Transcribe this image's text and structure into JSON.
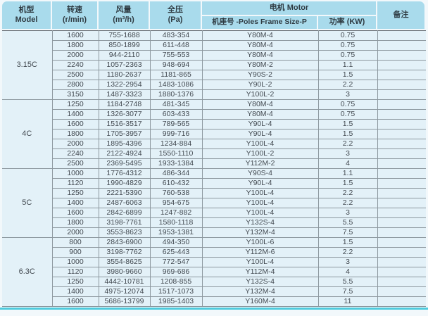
{
  "header": {
    "model": {
      "line1": "机型",
      "line2": "Model"
    },
    "speed": {
      "line1": "转速",
      "line2": "(r/min)"
    },
    "airflow": {
      "line1": "风量",
      "line2": "(m³/h)"
    },
    "pressure": {
      "line1": "全压",
      "line2": "(Pa)"
    },
    "motor_group": "电机 Motor",
    "frame": "机座号 -Poles Frame Size-P",
    "power": "功率 (KW)",
    "remark": "备注"
  },
  "colors": {
    "header_bg": "#a9dbec",
    "cell_bg": "#e3f1f8",
    "cell_border": "#8d989f",
    "group_divider": "#676e74",
    "bottom_accent": "#4ecbdd",
    "page_bg": "#f2f8fb"
  },
  "groups": [
    {
      "model": "3.15C",
      "rows": [
        [
          "1600",
          "755-1688",
          "483-354",
          "Y80M-4",
          "0.75",
          ""
        ],
        [
          "1800",
          "850-1899",
          "611-448",
          "Y80M-4",
          "0.75",
          ""
        ],
        [
          "2000",
          "944-2110",
          "755-553",
          "Y80M-4",
          "0.75",
          ""
        ],
        [
          "2240",
          "1057-2363",
          "948-694",
          "Y80M-2",
          "1.1",
          ""
        ],
        [
          "2500",
          "1180-2637",
          "1181-865",
          "Y90S-2",
          "1.5",
          ""
        ],
        [
          "2800",
          "1322-2954",
          "1483-1086",
          "Y90L-2",
          "2.2",
          ""
        ],
        [
          "3150",
          "1487-3323",
          "1880-1376",
          "Y100L-2",
          "3",
          ""
        ]
      ]
    },
    {
      "model": "4C",
      "rows": [
        [
          "1250",
          "1184-2748",
          "481-345",
          "Y80M-4",
          "0.75",
          ""
        ],
        [
          "1400",
          "1326-3077",
          "603-433",
          "Y80M-4",
          "0.75",
          ""
        ],
        [
          "1600",
          "1516-3517",
          "789-565",
          "Y90L-4",
          "1.5",
          ""
        ],
        [
          "1800",
          "1705-3957",
          "999-716",
          "Y90L-4",
          "1.5",
          ""
        ],
        [
          "2000",
          "1895-4396",
          "1234-884",
          "Y100L-4",
          "2.2",
          ""
        ],
        [
          "2240",
          "2122-4924",
          "1550-1110",
          "Y100L-2",
          "3",
          ""
        ],
        [
          "2500",
          "2369-5495",
          "1933-1384",
          "Y112M-2",
          "4",
          ""
        ]
      ]
    },
    {
      "model": "5C",
      "rows": [
        [
          "1000",
          "1776-4312",
          "486-344",
          "Y90S-4",
          "1.1",
          ""
        ],
        [
          "1120",
          "1990-4829",
          "610-432",
          "Y90L-4",
          "1.5",
          ""
        ],
        [
          "1250",
          "2221-5390",
          "760-538",
          "Y100L-4",
          "2.2",
          ""
        ],
        [
          "1400",
          "2487-6063",
          "954-675",
          "Y100L-4",
          "2.2",
          ""
        ],
        [
          "1600",
          "2842-6899",
          "1247-882",
          "Y100L-4",
          "3",
          ""
        ],
        [
          "1800",
          "3198-7761",
          "1580-1118",
          "Y132S-4",
          "5.5",
          ""
        ],
        [
          "2000",
          "3553-8623",
          "1953-1381",
          "Y132M-4",
          "7.5",
          ""
        ]
      ]
    },
    {
      "model": "6.3C",
      "rows": [
        [
          "800",
          "2843-6900",
          "494-350",
          "Y100L-6",
          "1.5",
          ""
        ],
        [
          "900",
          "3198-7762",
          "625-443",
          "Y112M-6",
          "2.2",
          ""
        ],
        [
          "1000",
          "3554-8625",
          "772-547",
          "Y100L-4",
          "3",
          ""
        ],
        [
          "1120",
          "3980-9660",
          "969-686",
          "Y112M-4",
          "4",
          ""
        ],
        [
          "1250",
          "4442-10781",
          "1208-855",
          "Y132S-4",
          "5.5",
          ""
        ],
        [
          "1400",
          "4975-12074",
          "1517-1073",
          "Y132M-4",
          "7.5",
          ""
        ],
        [
          "1600",
          "5686-13799",
          "1985-1403",
          "Y160M-4",
          "11",
          ""
        ]
      ]
    }
  ]
}
